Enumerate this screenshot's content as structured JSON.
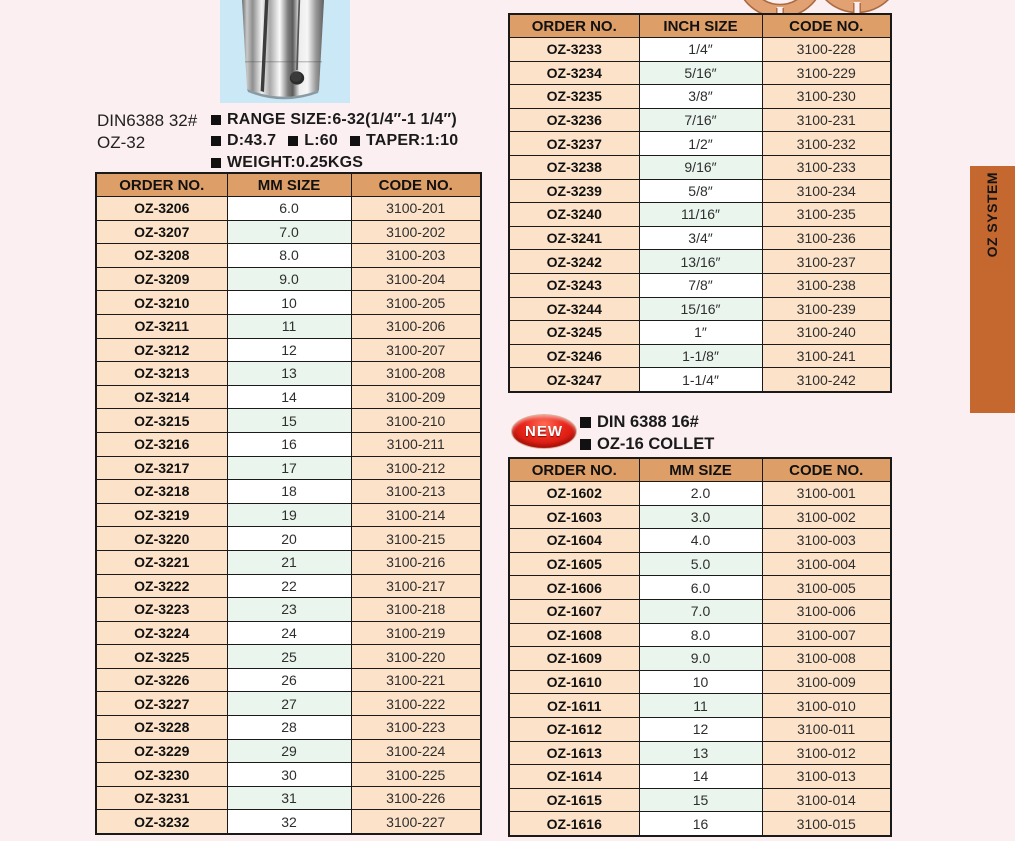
{
  "colors": {
    "page_bg": "#FBEFF2",
    "table_header": "#DE9E67",
    "cell_peach": "#FCE2C9",
    "cell_mint": "#EAF5EE",
    "cell_white": "#FFFFFF",
    "side_tab_orange": "#C4682F",
    "badge_red": "#D42015",
    "photo_bg": "#CBE8F7"
  },
  "product": {
    "model_line1": "DIN6388 32#",
    "model_line2": "OZ-32",
    "spec_lines": [
      [
        "RANGE SIZE:6-32(1/4″-1 1/4″)"
      ],
      [
        "D:43.7",
        "L:60",
        "TAPER:1:10"
      ],
      [
        "WEIGHT:0.25KGS"
      ]
    ]
  },
  "new_section": {
    "badge": "NEW",
    "spec_lines": [
      [
        "DIN 6388 16#"
      ],
      [
        "OZ-16 COLLET"
      ]
    ]
  },
  "side_tab": {
    "label": "OZ SYSTEM"
  },
  "icons": {
    "bullet": "black-square-bullet",
    "ring": "collet-face-ring",
    "photo": "oz32-collet-photo"
  },
  "tables": [
    {
      "name": "oz32-mm-table",
      "headers": [
        "ORDER NO.",
        "MM SIZE",
        "CODE NO."
      ],
      "rows": [
        [
          "OZ-3206",
          "6.0",
          "3100-201"
        ],
        [
          "OZ-3207",
          "7.0",
          "3100-202"
        ],
        [
          "OZ-3208",
          "8.0",
          "3100-203"
        ],
        [
          "OZ-3209",
          "9.0",
          "3100-204"
        ],
        [
          "OZ-3210",
          "10",
          "3100-205"
        ],
        [
          "OZ-3211",
          "11",
          "3100-206"
        ],
        [
          "OZ-3212",
          "12",
          "3100-207"
        ],
        [
          "OZ-3213",
          "13",
          "3100-208"
        ],
        [
          "OZ-3214",
          "14",
          "3100-209"
        ],
        [
          "OZ-3215",
          "15",
          "3100-210"
        ],
        [
          "OZ-3216",
          "16",
          "3100-211"
        ],
        [
          "OZ-3217",
          "17",
          "3100-212"
        ],
        [
          "OZ-3218",
          "18",
          "3100-213"
        ],
        [
          "OZ-3219",
          "19",
          "3100-214"
        ],
        [
          "OZ-3220",
          "20",
          "3100-215"
        ],
        [
          "OZ-3221",
          "21",
          "3100-216"
        ],
        [
          "OZ-3222",
          "22",
          "3100-217"
        ],
        [
          "OZ-3223",
          "23",
          "3100-218"
        ],
        [
          "OZ-3224",
          "24",
          "3100-219"
        ],
        [
          "OZ-3225",
          "25",
          "3100-220"
        ],
        [
          "OZ-3226",
          "26",
          "3100-221"
        ],
        [
          "OZ-3227",
          "27",
          "3100-222"
        ],
        [
          "OZ-3228",
          "28",
          "3100-223"
        ],
        [
          "OZ-3229",
          "29",
          "3100-224"
        ],
        [
          "OZ-3230",
          "30",
          "3100-225"
        ],
        [
          "OZ-3231",
          "31",
          "3100-226"
        ],
        [
          "OZ-3232",
          "32",
          "3100-227"
        ]
      ]
    },
    {
      "name": "oz32-inch-table",
      "headers": [
        "ORDER NO.",
        "INCH SIZE",
        "CODE NO."
      ],
      "rows": [
        [
          "OZ-3233",
          "1/4″",
          "3100-228"
        ],
        [
          "OZ-3234",
          "5/16″",
          "3100-229"
        ],
        [
          "OZ-3235",
          "3/8″",
          "3100-230"
        ],
        [
          "OZ-3236",
          "7/16″",
          "3100-231"
        ],
        [
          "OZ-3237",
          "1/2″",
          "3100-232"
        ],
        [
          "OZ-3238",
          "9/16″",
          "3100-233"
        ],
        [
          "OZ-3239",
          "5/8″",
          "3100-234"
        ],
        [
          "OZ-3240",
          "11/16″",
          "3100-235"
        ],
        [
          "OZ-3241",
          "3/4″",
          "3100-236"
        ],
        [
          "OZ-3242",
          "13/16″",
          "3100-237"
        ],
        [
          "OZ-3243",
          "7/8″",
          "3100-238"
        ],
        [
          "OZ-3244",
          "15/16″",
          "3100-239"
        ],
        [
          "OZ-3245",
          "1″",
          "3100-240"
        ],
        [
          "OZ-3246",
          "1-1/8″",
          "3100-241"
        ],
        [
          "OZ-3247",
          "1-1/4″",
          "3100-242"
        ]
      ]
    },
    {
      "name": "oz16-mm-table",
      "headers": [
        "ORDER NO.",
        "MM SIZE",
        "CODE NO."
      ],
      "rows": [
        [
          "OZ-1602",
          "2.0",
          "3100-001"
        ],
        [
          "OZ-1603",
          "3.0",
          "3100-002"
        ],
        [
          "OZ-1604",
          "4.0",
          "3100-003"
        ],
        [
          "OZ-1605",
          "5.0",
          "3100-004"
        ],
        [
          "OZ-1606",
          "6.0",
          "3100-005"
        ],
        [
          "OZ-1607",
          "7.0",
          "3100-006"
        ],
        [
          "OZ-1608",
          "8.0",
          "3100-007"
        ],
        [
          "OZ-1609",
          "9.0",
          "3100-008"
        ],
        [
          "OZ-1610",
          "10",
          "3100-009"
        ],
        [
          "OZ-1611",
          "11",
          "3100-010"
        ],
        [
          "OZ-1612",
          "12",
          "3100-011"
        ],
        [
          "OZ-1613",
          "13",
          "3100-012"
        ],
        [
          "OZ-1614",
          "14",
          "3100-013"
        ],
        [
          "OZ-1615",
          "15",
          "3100-014"
        ],
        [
          "OZ-1616",
          "16",
          "3100-015"
        ]
      ]
    }
  ]
}
